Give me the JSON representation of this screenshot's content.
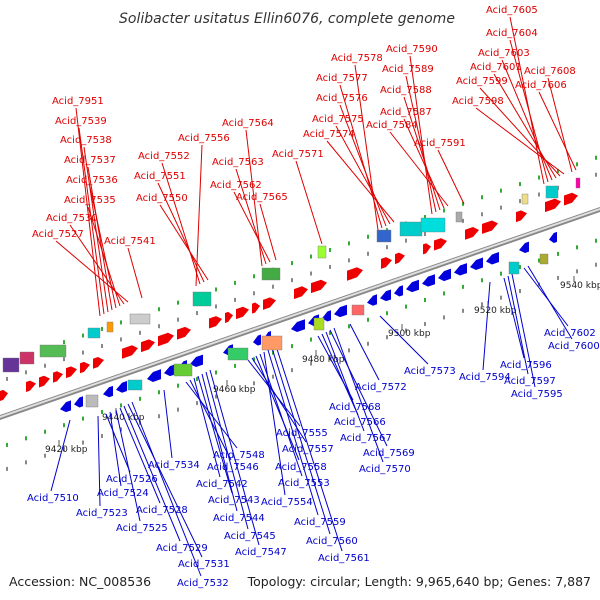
{
  "title": "Solibacter usitatus Ellin6076, complete genome",
  "footer": {
    "accession": "Accession: NC_008536",
    "summary": "Topology: circular; Length: 9,965,640 bp; Genes: 7,887"
  },
  "colors": {
    "forward_strand": "#ee0000",
    "reverse_strand": "#0000dd",
    "backbone": "#999999",
    "label_forward": "#dd0000",
    "label_reverse": "#0000cc"
  },
  "scale_ticks": [
    "9420 kbp",
    "9440 kbp",
    "9460 kbp",
    "9480 kbp",
    "9500 kbp",
    "9520 kbp",
    "9540 kbp"
  ],
  "forward_labels": [
    "Acid_7951",
    "Acid_7539",
    "Acid_7538",
    "Acid_7537",
    "Acid_7536",
    "Acid_7535",
    "Acid_7530",
    "Acid_7527",
    "Acid_7541",
    "Acid_7556",
    "Acid_7552",
    "Acid_7551",
    "Acid_7550",
    "Acid_7564",
    "Acid_7563",
    "Acid_7562",
    "Acid_7565",
    "Acid_7571",
    "Acid_7578",
    "Acid_7577",
    "Acid_7576",
    "Acid_7575",
    "Acid_7574",
    "Acid_7590",
    "Acid_7589",
    "Acid_7588",
    "Acid_7587",
    "Acid_7584",
    "Acid_7591",
    "Acid_7605",
    "Acid_7604",
    "Acid_7603",
    "Acid_7601",
    "Acid_7599",
    "Acid_7598",
    "Acid_7608",
    "Acid_7606"
  ],
  "reverse_labels": [
    "Acid_7510",
    "Acid_7523",
    "Acid_7526",
    "Acid_7524",
    "Acid_7525",
    "Acid_7528",
    "Acid_7529",
    "Acid_7531",
    "Acid_7532",
    "Acid_7534",
    "Acid_7548",
    "Acid_7546",
    "Acid_7542",
    "Acid_7543",
    "Acid_7544",
    "Acid_7545",
    "Acid_7547",
    "Acid_7555",
    "Acid_7557",
    "Acid_7558",
    "Acid_7553",
    "Acid_7554",
    "Acid_7559",
    "Acid_7560",
    "Acid_7561",
    "Acid_7568",
    "Acid_7566",
    "Acid_7567",
    "Acid_7569",
    "Acid_7570",
    "Acid_7572",
    "Acid_7573",
    "Acid_7594",
    "Acid_7596",
    "Acid_7597",
    "Acid_7595",
    "Acid_7602",
    "Acid_7600"
  ]
}
